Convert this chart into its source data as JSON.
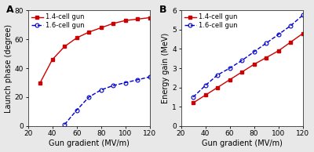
{
  "panel_A": {
    "title": "A",
    "xlabel": "Gun gradient (MV/m)",
    "ylabel": "Launch phase (degree)",
    "xlim": [
      20,
      120
    ],
    "ylim": [
      0,
      80
    ],
    "xticks": [
      20,
      40,
      60,
      80,
      100,
      120
    ],
    "yticks": [
      0,
      20,
      40,
      60,
      80
    ],
    "line1_label": "1.4-cell gun",
    "line1_color": "#cc0000",
    "line1_x": [
      30,
      40,
      50,
      60,
      70,
      80,
      90,
      100,
      110,
      120
    ],
    "line1_y": [
      30,
      46,
      55,
      61,
      65,
      68,
      71,
      73,
      74,
      75
    ],
    "line1_marker": "s",
    "line1_style": "-",
    "line2_label": "1.6-cell gun",
    "line2_color": "#0000cc",
    "line2_x": [
      50,
      60,
      70,
      80,
      90,
      100,
      110,
      120
    ],
    "line2_y": [
      1,
      11,
      20,
      25,
      28,
      30,
      32,
      34
    ],
    "line2_marker": "o",
    "line2_style": "--"
  },
  "panel_B": {
    "title": "B",
    "xlabel": "Gun gradient (MV/m)",
    "ylabel": "Energy gain (MeV)",
    "xlim": [
      20,
      120
    ],
    "ylim": [
      0,
      6
    ],
    "xticks": [
      20,
      40,
      60,
      80,
      100,
      120
    ],
    "yticks": [
      0,
      1,
      2,
      3,
      4,
      5,
      6
    ],
    "line1_label": "1.4-cell gun",
    "line1_color": "#cc0000",
    "line1_x": [
      30,
      40,
      50,
      60,
      70,
      80,
      90,
      100,
      110,
      120
    ],
    "line1_y": [
      1.2,
      1.6,
      2.0,
      2.4,
      2.8,
      3.2,
      3.55,
      3.9,
      4.35,
      4.8
    ],
    "line1_marker": "s",
    "line1_style": "-",
    "line2_label": "1.6-cell gun",
    "line2_color": "#0000cc",
    "line2_x": [
      30,
      40,
      50,
      60,
      70,
      80,
      90,
      100,
      110,
      120
    ],
    "line2_y": [
      1.5,
      2.1,
      2.65,
      3.0,
      3.4,
      3.85,
      4.3,
      4.75,
      5.2,
      5.75
    ],
    "line2_marker": "o",
    "line2_style": "--"
  },
  "background_color": "#ffffff",
  "fig_background": "#e8e8e8",
  "fontsize": 7,
  "tick_fontsize": 6.5,
  "marker_size": 3.5,
  "linewidth": 1.0
}
